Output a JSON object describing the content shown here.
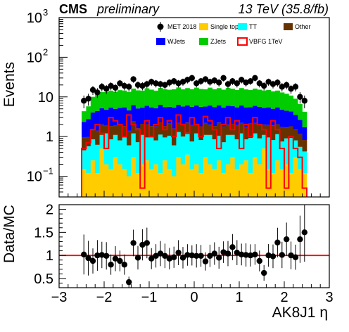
{
  "header": {
    "experiment": "CMS",
    "status": "preliminary",
    "energy_lumi": "13 TeV (35.8/fb)"
  },
  "chart_data": [
    {
      "type": "bar",
      "subtype": "stacked-histogram",
      "ylabel": "Events",
      "yscale": "log",
      "ylim": [
        0.03,
        1000
      ],
      "xlim": [
        -3,
        3
      ],
      "bin_width": 0.1,
      "x_bin_start": -2.5,
      "y_ticks": [
        {
          "value": 0.1,
          "mant": "10",
          "exp": "−1"
        },
        {
          "value": 1,
          "mant": "1",
          "exp": ""
        },
        {
          "value": 10,
          "mant": "10",
          "exp": ""
        },
        {
          "value": 100,
          "mant": "10",
          "exp": "2"
        },
        {
          "value": 1000,
          "mant": "10",
          "exp": "3"
        }
      ],
      "legend": {
        "placement": "top-right",
        "entries": [
          {
            "key": "data",
            "label": "MET 2018",
            "style": "marker",
            "color": "#000000"
          },
          {
            "key": "singletop",
            "label": "Single top",
            "style": "fill",
            "color": "#ffcc00"
          },
          {
            "key": "tt",
            "label": "TT",
            "style": "fill",
            "color": "#00ffff"
          },
          {
            "key": "other",
            "label": "Other",
            "style": "fill",
            "color": "#663300"
          },
          {
            "key": "wjets",
            "label": "WJets",
            "style": "fill",
            "color": "#0000ff"
          },
          {
            "key": "zjets",
            "label": "ZJets",
            "style": "fill",
            "color": "#00cc00"
          },
          {
            "key": "signal",
            "label": "VBFG 1TeV",
            "style": "line",
            "color": "#ff0000"
          }
        ]
      },
      "stack_order": [
        "singletop",
        "tt",
        "other",
        "wjets",
        "zjets"
      ],
      "series": [
        {
          "key": "singletop",
          "color": "#ffcc00",
          "values": [
            0.15,
            0.12,
            0.25,
            0.12,
            0.5,
            0.2,
            0.15,
            0.3,
            0.2,
            0.15,
            0.1,
            0.3,
            0.12,
            0.2,
            0.25,
            0.15,
            0.2,
            0.12,
            0.25,
            0.15,
            0.1,
            0.3,
            0.2,
            0.35,
            0.15,
            0.2,
            0.12,
            0.3,
            0.2,
            0.15,
            0.25,
            0.12,
            0.2,
            0.3,
            0.15,
            0.2,
            0.25,
            0.12,
            0.3,
            0.2,
            0.5,
            0.15,
            0.12,
            0.25,
            0.15,
            0.2,
            0.12,
            0.3,
            0.15,
            0.12
          ]
        },
        {
          "key": "tt",
          "color": "#00ffff",
          "values": [
            0.3,
            0.45,
            0.6,
            0.5,
            0.6,
            1.0,
            0.7,
            0.8,
            0.6,
            0.8,
            0.5,
            0.9,
            0.6,
            0.9,
            0.7,
            0.8,
            0.6,
            1.0,
            0.7,
            0.9,
            0.5,
            1.0,
            0.8,
            0.9,
            0.6,
            1.0,
            0.7,
            0.8,
            0.9,
            0.7,
            0.8,
            0.6,
            0.9,
            0.8,
            0.7,
            1.0,
            0.6,
            0.8,
            0.9,
            0.7,
            0.6,
            0.8,
            0.7,
            0.9,
            0.6,
            0.7,
            0.8,
            0.5,
            0.4,
            0.3
          ]
        },
        {
          "key": "other",
          "color": "#663300",
          "values": [
            0.5,
            0.4,
            0.6,
            0.8,
            0.9,
            0.7,
            1.0,
            0.8,
            1.1,
            0.9,
            0.8,
            1.2,
            0.9,
            1.0,
            1.1,
            0.9,
            1.0,
            1.2,
            0.9,
            1.1,
            1.0,
            0.9,
            1.1,
            1.0,
            1.2,
            0.9,
            1.0,
            1.1,
            0.9,
            1.0,
            1.2,
            1.1,
            0.9,
            1.0,
            1.1,
            1.0,
            0.9,
            1.2,
            1.0,
            1.1,
            0.9,
            1.0,
            1.1,
            0.9,
            1.0,
            0.8,
            0.9,
            0.7,
            0.6,
            0.4
          ]
        },
        {
          "key": "wjets",
          "color": "#0000ff",
          "values": [
            1.4,
            1.8,
            2.6,
            3.0,
            3.2,
            2.9,
            3.5,
            3.1,
            3.4,
            3.6,
            3.2,
            3.8,
            3.5,
            3.3,
            3.9,
            3.6,
            3.4,
            4.0,
            3.7,
            3.5,
            3.8,
            4.1,
            3.6,
            3.9,
            3.7,
            4.0,
            3.8,
            3.5,
            4.1,
            3.7,
            3.9,
            3.6,
            4.0,
            3.8,
            3.5,
            3.9,
            3.7,
            3.4,
            3.8,
            3.6,
            3.3,
            3.5,
            3.1,
            3.4,
            3.0,
            2.8,
            2.5,
            2.0,
            1.5,
            0.9
          ]
        },
        {
          "key": "zjets",
          "color": "#00cc00",
          "values": [
            2.0,
            3.0,
            6.0,
            7.5,
            8.0,
            8.5,
            9.0,
            8.5,
            9.5,
            9.0,
            8.8,
            10.0,
            9.5,
            9.0,
            10.5,
            9.8,
            9.2,
            10.5,
            10.0,
            9.5,
            10.2,
            11.0,
            9.8,
            10.5,
            10.0,
            11.0,
            10.2,
            9.8,
            11.0,
            10.0,
            10.5,
            9.8,
            10.8,
            10.2,
            9.5,
            10.6,
            10.0,
            9.4,
            10.2,
            9.6,
            9.2,
            9.5,
            8.8,
            9.0,
            8.2,
            7.5,
            6.5,
            5.5,
            4.0,
            2.5
          ]
        },
        {
          "key": "signal",
          "color": "#ff0000",
          "style": "step",
          "values": [
            0.5,
            0.7,
            1.5,
            2.0,
            1.2,
            0.5,
            3.0,
            2.5,
            2.0,
            1.0,
            3.5,
            2.0,
            1.5,
            0.05,
            2.5,
            1.0,
            2.0,
            3.0,
            1.5,
            2.5,
            1.0,
            3.5,
            2.0,
            1.2,
            3.0,
            2.0,
            1.0,
            3.2,
            2.5,
            1.5,
            0.5,
            2.0,
            3.0,
            1.5,
            2.5,
            0.5,
            2.0,
            1.0,
            3.0,
            2.0,
            1.5,
            0.05,
            2.5,
            1.5,
            0.5,
            0.05,
            1.0,
            0.5,
            0.3,
            0.05
          ]
        },
        {
          "key": "data",
          "color": "#000000",
          "style": "marker",
          "values": [
            8,
            9,
            15,
            13,
            18,
            16,
            19,
            17,
            22,
            19,
            18,
            28,
            20,
            19,
            21,
            24,
            22,
            21,
            20,
            23,
            25,
            22,
            24,
            27,
            30,
            22,
            25,
            28,
            24,
            26,
            23,
            30,
            21,
            25,
            22,
            27,
            23,
            25,
            30,
            22,
            19,
            24,
            21,
            23,
            18,
            20,
            16,
            18,
            10,
            8
          ]
        }
      ]
    },
    {
      "type": "scatter",
      "subtype": "ratio",
      "ylabel": "Data/MC",
      "xlabel": "AK8J1 η",
      "xlim": [
        -3,
        3
      ],
      "ylim": [
        0.3,
        2.1
      ],
      "reference_line": 1,
      "y_ticks": [
        0.5,
        1,
        1.5,
        2
      ],
      "y_tick_labels": [
        "0.5",
        "1",
        "1.5",
        "2"
      ],
      "x_ticks": [
        -3,
        -2,
        -1,
        0,
        1,
        2,
        3
      ],
      "x_tick_labels": [
        "−3",
        "−2",
        "−1",
        "0",
        "1",
        "2",
        "3"
      ],
      "x": [
        -2.45,
        -2.35,
        -2.25,
        -2.15,
        -2.05,
        -1.95,
        -1.85,
        -1.75,
        -1.65,
        -1.55,
        -1.45,
        -1.35,
        -1.25,
        -1.15,
        -1.05,
        -0.95,
        -0.85,
        -0.75,
        -0.65,
        -0.55,
        -0.45,
        -0.35,
        -0.25,
        -0.15,
        -0.05,
        0.05,
        0.15,
        0.25,
        0.35,
        0.45,
        0.55,
        0.65,
        0.75,
        0.85,
        0.95,
        1.05,
        1.15,
        1.25,
        1.35,
        1.45,
        1.55,
        1.65,
        1.75,
        1.85,
        1.95,
        2.05,
        2.15,
        2.25,
        2.35,
        2.45
      ],
      "y": [
        1.02,
        0.94,
        0.88,
        1.0,
        1.01,
        0.99,
        0.8,
        0.93,
        0.88,
        0.8,
        0.42,
        1.27,
        0.95,
        1.23,
        1.27,
        0.93,
        0.99,
        1.04,
        0.99,
        0.93,
        0.96,
        1.06,
        0.95,
        1.01,
        1.0,
        0.99,
        0.99,
        0.87,
        0.99,
        1.04,
        0.95,
        1.07,
        1.04,
        1.18,
        1.06,
        1.02,
        1.01,
        1.0,
        1.02,
        0.88,
        0.62,
        1.0,
        0.98,
        1.28,
        1.01,
        1.35,
        1.0,
        0.96,
        1.35,
        1.5
      ]
    }
  ]
}
